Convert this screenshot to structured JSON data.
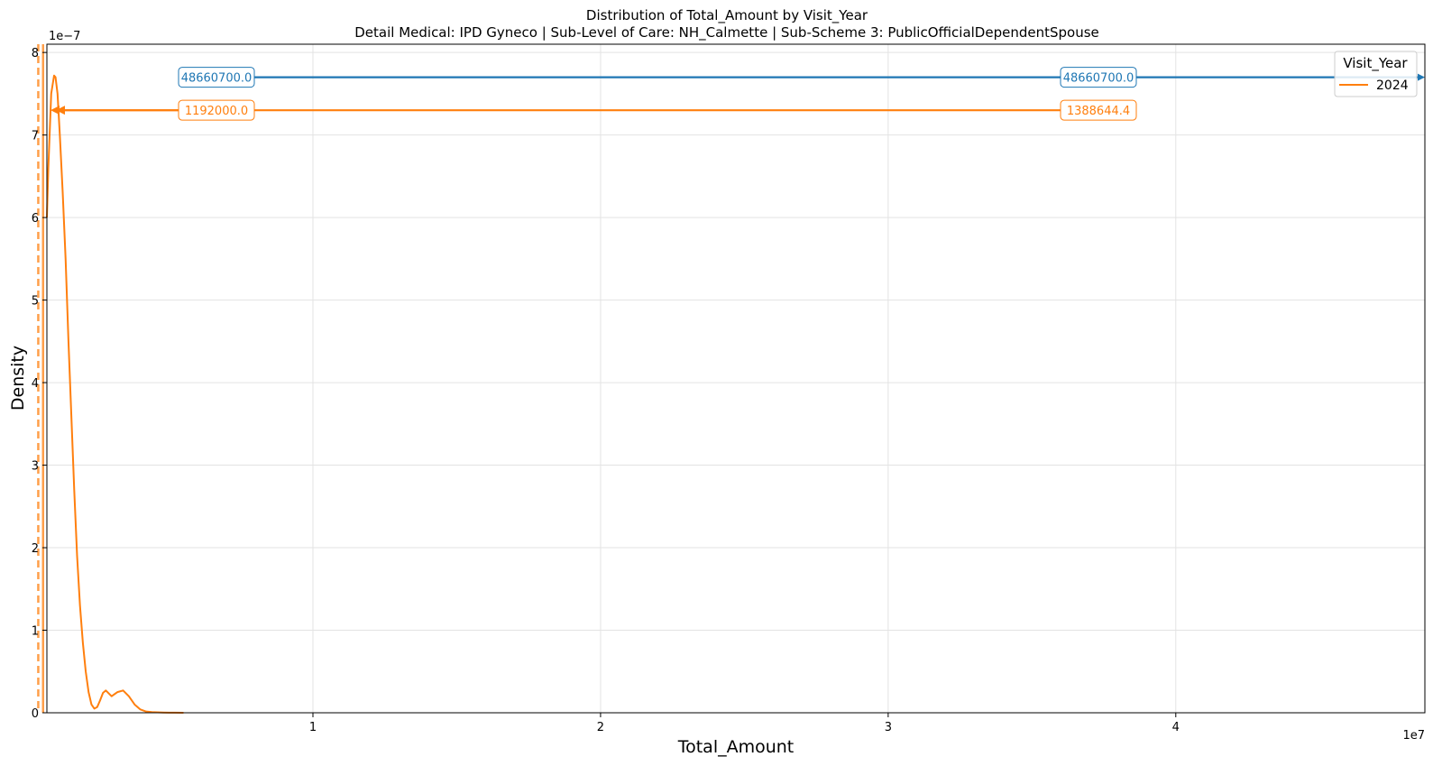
{
  "chart_data": {
    "type": "line",
    "title": "Distribution of Total_Amount by Visit_Year",
    "subtitle": "Detail Medical: IPD Gyneco | Sub-Level of Care: NH_Calmette | Sub-Scheme 3: PublicOfficialDependentSpouse",
    "xlabel": "Total_Amount",
    "ylabel": "Density",
    "x_offset_label": "1e7",
    "y_offset_label": "1e−7",
    "xlim": [
      0.075,
      4.86607
    ],
    "ylim": [
      0,
      8.1
    ],
    "x_ticks": [
      1,
      2,
      3,
      4
    ],
    "y_ticks": [
      0,
      1,
      2,
      3,
      4,
      5,
      6,
      7,
      8
    ],
    "grid": true,
    "legend": {
      "title": "Visit_Year",
      "position": "top-right",
      "entries": [
        "2024"
      ]
    },
    "colors": {
      "series": "#ff7f0e",
      "range": "#1f77b4",
      "text": "#000000"
    },
    "series": [
      {
        "name": "2024",
        "x": [
          0.075,
          0.08,
          0.09,
          0.1,
          0.105,
          0.112,
          0.12,
          0.13,
          0.14,
          0.15,
          0.16,
          0.17,
          0.18,
          0.19,
          0.2,
          0.21,
          0.22,
          0.23,
          0.24,
          0.25,
          0.26,
          0.27,
          0.28,
          0.3,
          0.32,
          0.34,
          0.36,
          0.38,
          0.4,
          0.42,
          0.44,
          0.46,
          0.48,
          0.5,
          0.52,
          0.55
        ],
        "y": [
          6.0,
          6.6,
          7.5,
          7.72,
          7.7,
          7.5,
          7.0,
          6.3,
          5.5,
          4.5,
          3.6,
          2.7,
          1.9,
          1.3,
          0.85,
          0.5,
          0.25,
          0.1,
          0.05,
          0.07,
          0.15,
          0.24,
          0.27,
          0.2,
          0.25,
          0.27,
          0.2,
          0.1,
          0.04,
          0.015,
          0.008,
          0.005,
          0.003,
          0.002,
          0.001,
          0.0
        ]
      }
    ],
    "reference_lines": [
      {
        "x": 0.045,
        "style": "dashed"
      },
      {
        "x": 0.0617,
        "style": "solid"
      }
    ],
    "annotations": [
      {
        "label": "48660700.0",
        "color": "#1f77b4",
        "y": 7.7,
        "x_from": 0.0,
        "x_to": 4.86607,
        "side": "left"
      },
      {
        "label": "48660700.0",
        "color": "#1f77b4",
        "y": 7.7,
        "x_from": 0.0,
        "x_to": 4.86607,
        "side": "right"
      },
      {
        "label": "1192000.0",
        "color": "#ff7f0e",
        "y": 7.3,
        "x_from": 0.0617,
        "x_to": 3.65,
        "side": "left"
      },
      {
        "label": "1388644.4",
        "color": "#ff7f0e",
        "y": 7.3,
        "x_from": 0.0617,
        "x_to": 3.65,
        "side": "right"
      }
    ]
  }
}
